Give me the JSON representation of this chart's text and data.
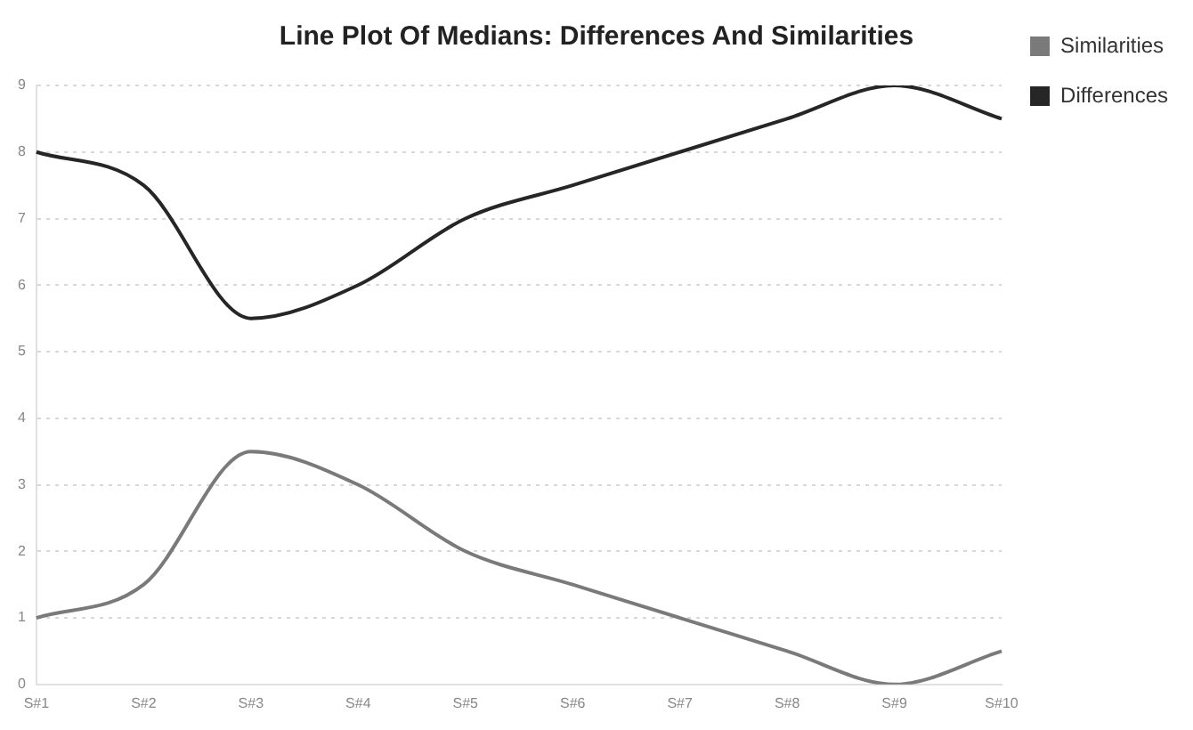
{
  "chart_data": {
    "type": "line",
    "title": "Line Plot Of Medians: Differences And Similarities",
    "categories": [
      "S#1",
      "S#2",
      "S#3",
      "S#4",
      "S#5",
      "S#6",
      "S#7",
      "S#8",
      "S#9",
      "S#10"
    ],
    "series": [
      {
        "name": "Similarities",
        "color": "#7a7a7a",
        "values": [
          1,
          1.5,
          3.5,
          3,
          2,
          1.5,
          1,
          0.5,
          0,
          0.5
        ]
      },
      {
        "name": "Differences",
        "color": "#262626",
        "values": [
          8,
          7.5,
          5.5,
          6,
          7,
          7.5,
          8,
          8.5,
          9,
          8.5
        ]
      }
    ],
    "ylim": [
      0,
      9
    ],
    "yticks": [
      0,
      1,
      2,
      3,
      4,
      5,
      6,
      7,
      8,
      9
    ],
    "grid": "y",
    "legend": "top right",
    "marker": "none",
    "line_style": "solid"
  }
}
